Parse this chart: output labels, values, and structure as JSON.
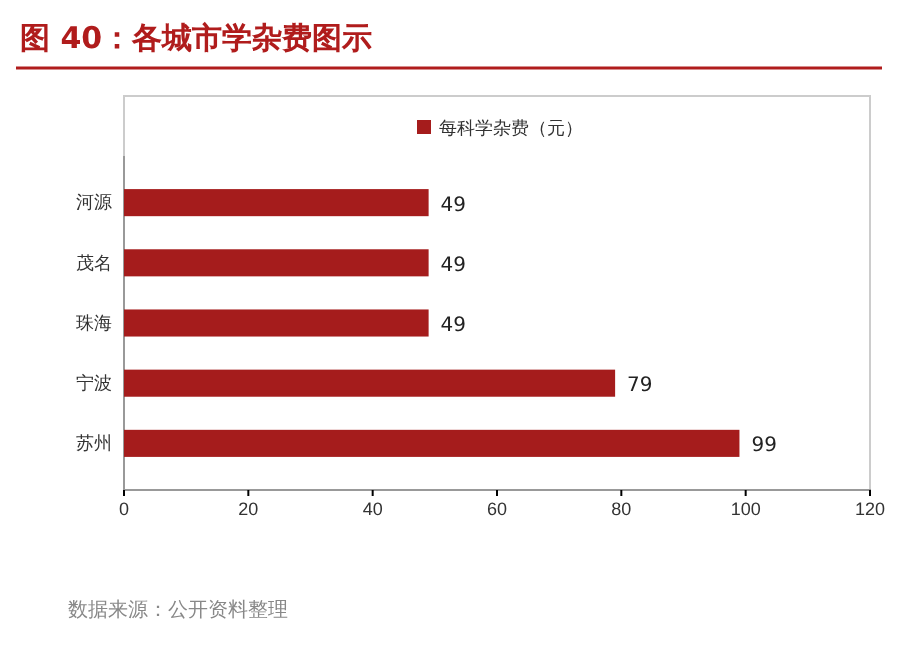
{
  "chart_data": {
    "type": "bar",
    "orientation": "horizontal",
    "title": "图 40：各城市学杂费图示",
    "categories": [
      "河源",
      "茂名",
      "珠海",
      "宁波",
      "苏州"
    ],
    "series": [
      {
        "name": "每科学杂费（元）",
        "color": "#a51c1c",
        "values": [
          49,
          49,
          49,
          79,
          99
        ]
      }
    ],
    "xlim": [
      0,
      120
    ],
    "xticks": [
      0,
      20,
      40,
      60,
      80,
      100,
      120
    ],
    "grid": false,
    "legend": "top",
    "data_labels": true,
    "annotations": [
      "数据来源：公开资料整理"
    ]
  }
}
